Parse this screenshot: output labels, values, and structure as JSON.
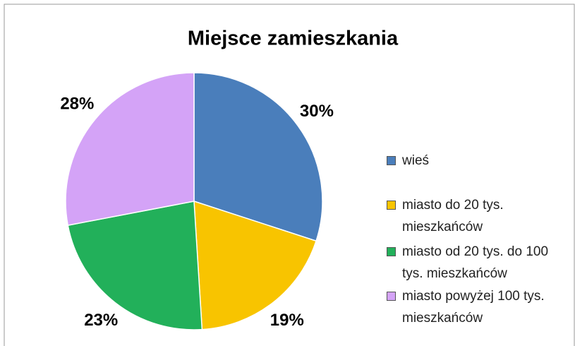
{
  "chart_data": {
    "type": "pie",
    "title": "Miejsce zamieszkania",
    "categories": [
      "wieś",
      "miasto do 20 tys. mieszkańców",
      "miasto od 20 tys. do 100 tys. mieszkańców",
      "miasto powyżej 100 tys. mieszkańców"
    ],
    "values": [
      30,
      19,
      23,
      28
    ],
    "value_labels": [
      "30%",
      "19%",
      "23%",
      "28%"
    ],
    "colors": [
      "#4a7ebb",
      "#f8c400",
      "#22b05a",
      "#d4a3f7"
    ],
    "legend": "right"
  }
}
